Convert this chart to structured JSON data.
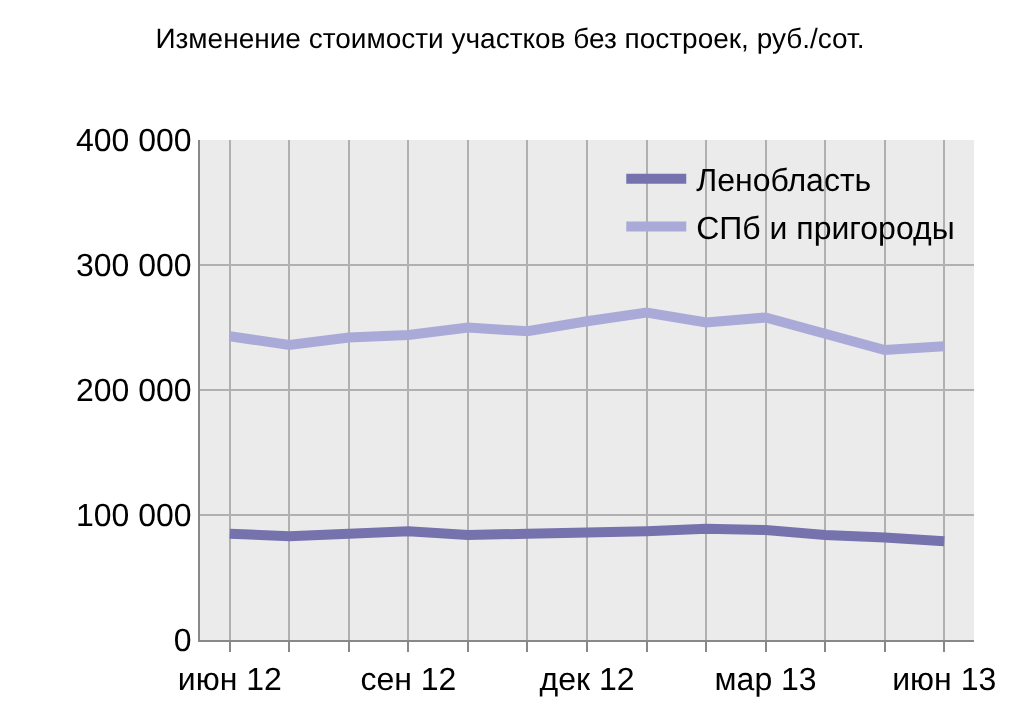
{
  "chart_data": {
    "type": "line",
    "title": "Изменение стоимости участков без построек, руб./сот.",
    "categories": [
      "июн 12",
      null,
      null,
      "сен 12",
      null,
      null,
      "дек 12",
      null,
      null,
      "мар 13",
      null,
      null,
      "июн 13"
    ],
    "series": [
      {
        "name": "Ленобласть",
        "color": "#7672ad",
        "values": [
          85000,
          83000,
          85000,
          87000,
          84000,
          85000,
          86000,
          87000,
          89000,
          88000,
          84000,
          82000,
          79000
        ]
      },
      {
        "name": "СПб и пригороды",
        "color": "#aaaad8",
        "values": [
          243000,
          236000,
          242000,
          244000,
          250000,
          247000,
          255000,
          262000,
          254000,
          258000,
          245000,
          232000,
          235000
        ]
      }
    ],
    "ylim": [
      0,
      400000
    ],
    "yticks": [
      {
        "value": 0,
        "label": "0"
      },
      {
        "value": 100000,
        "label": "100 000"
      },
      {
        "value": 200000,
        "label": "200 000"
      },
      {
        "value": 300000,
        "label": "300 000"
      },
      {
        "value": 400000,
        "label": "400 000"
      }
    ],
    "grid": true,
    "legend": "top right",
    "marker": "none",
    "line_style": "solid"
  }
}
